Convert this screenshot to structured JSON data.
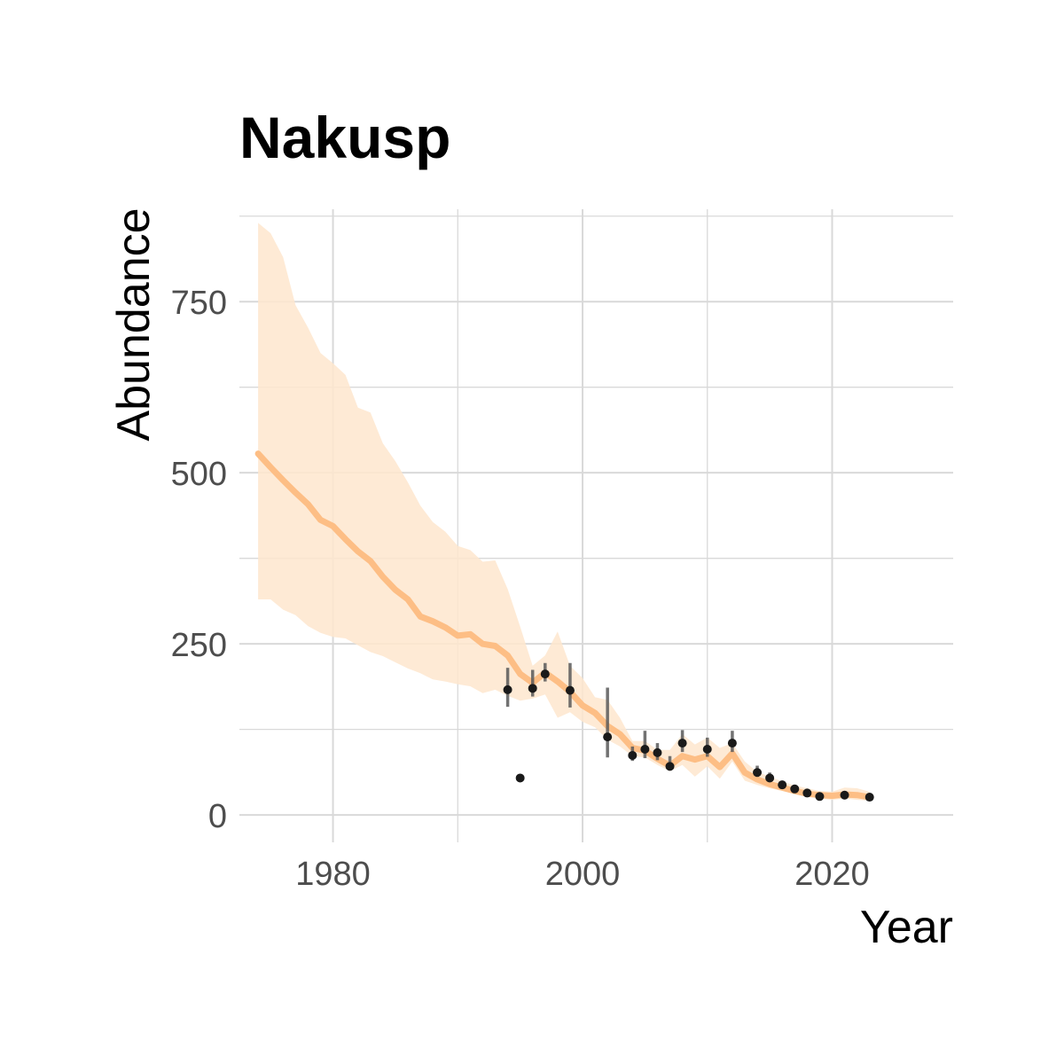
{
  "chart_data": {
    "type": "line",
    "title": "Nakusp",
    "xlabel": "Year",
    "ylabel": "Abundance",
    "xlim": [
      1972.5,
      2029.7
    ],
    "ylim": [
      -40,
      885
    ],
    "x_ticks": [
      1980,
      2000,
      2020
    ],
    "x_minor_ticks": [
      1990,
      2010
    ],
    "y_ticks": [
      0,
      250,
      500,
      750
    ],
    "y_minor_ticks": [
      125,
      375,
      625,
      875
    ],
    "grid": true,
    "legend": "none",
    "colors": {
      "line": "#fdbe85",
      "band": "#fee6ce",
      "points": "#1a1a1a",
      "errorbars": "#595959",
      "grid": "#d9d9d9",
      "tick_labels": "#4d4d4d"
    },
    "series": [
      {
        "type": "line_with_ribbon",
        "x": [
          1974,
          1975,
          1976,
          1977,
          1978,
          1979,
          1980,
          1981,
          1982,
          1983,
          1984,
          1985,
          1986,
          1987,
          1988,
          1989,
          1990,
          1991,
          1992,
          1993,
          1994,
          1995,
          1996,
          1997,
          1998,
          1999,
          2000,
          2001,
          2002,
          2003,
          2004,
          2005,
          2006,
          2007,
          2008,
          2009,
          2010,
          2011,
          2012,
          2013,
          2014,
          2015,
          2016,
          2017,
          2018,
          2019,
          2020,
          2021,
          2022,
          2023
        ],
        "y": [
          528,
          508,
          489,
          471,
          454,
          431,
          422,
          403,
          385,
          371,
          348,
          329,
          315,
          290,
          283,
          274,
          262,
          264,
          250,
          247,
          233,
          206,
          193,
          208,
          195,
          180,
          160,
          149,
          130,
          118,
          98,
          94,
          82,
          72,
          86,
          81,
          86,
          70,
          90,
          62,
          52,
          45,
          40,
          35,
          31,
          29,
          28,
          30,
          29,
          26
        ],
        "lower": [
          315,
          315,
          300,
          292,
          276,
          266,
          260,
          258,
          248,
          238,
          232,
          223,
          214,
          207,
          198,
          195,
          191,
          188,
          178,
          183,
          174,
          167,
          170,
          176,
          142,
          150,
          136,
          128,
          110,
          100,
          86,
          84,
          73,
          64,
          73,
          56,
          71,
          53,
          78,
          50,
          44,
          39,
          35,
          31,
          27,
          24,
          22,
          24,
          22,
          21
        ],
        "upper": [
          865,
          850,
          815,
          745,
          712,
          675,
          660,
          643,
          595,
          588,
          543,
          517,
          486,
          452,
          428,
          414,
          393,
          387,
          370,
          372,
          330,
          275,
          218,
          233,
          268,
          218,
          200,
          172,
          168,
          142,
          108,
          108,
          95,
          95,
          118,
          103,
          113,
          98,
          105,
          78,
          63,
          56,
          49,
          43,
          39,
          35,
          34,
          40,
          39,
          34
        ]
      },
      {
        "type": "points_with_errorbars",
        "x": [
          1994,
          1995,
          1996,
          1997,
          1999,
          2002,
          2004,
          2005,
          2006,
          2007,
          2008,
          2010,
          2012,
          2014,
          2015,
          2016,
          2017,
          2018,
          2019,
          2021,
          2023
        ],
        "y": [
          183,
          54,
          185,
          206,
          182,
          114,
          87,
          96,
          91,
          71,
          105,
          96,
          105,
          62,
          54,
          44,
          38,
          32,
          27,
          29,
          26
        ],
        "lower": [
          158,
          54,
          173,
          195,
          157,
          84,
          79,
          83,
          80,
          65,
          92,
          85,
          92,
          56,
          48,
          40,
          34,
          28,
          24,
          26,
          24
        ],
        "upper": [
          215,
          54,
          212,
          222,
          222,
          186,
          100,
          123,
          105,
          86,
          124,
          113,
          123,
          72,
          62,
          50,
          43,
          36,
          31,
          33,
          30
        ]
      }
    ]
  }
}
